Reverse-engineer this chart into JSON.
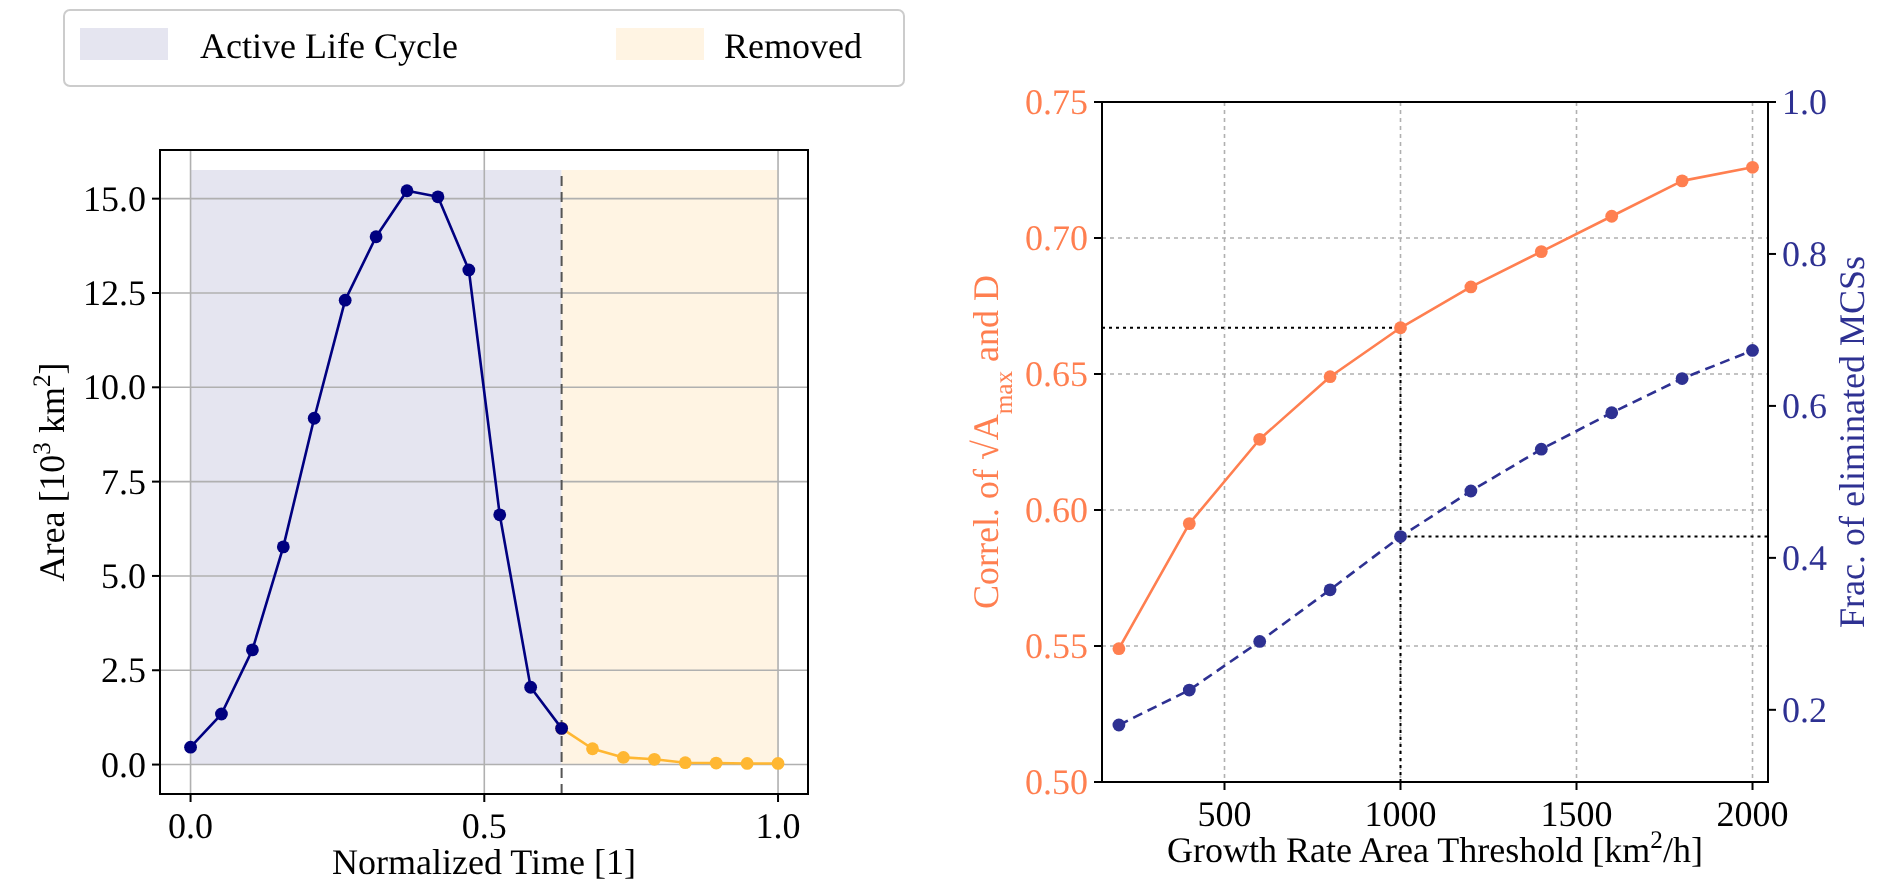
{
  "chart_data": [
    {
      "type": "line",
      "xlabel": "Normalized Time [1]",
      "ylabel": "Area [10$^{3}$ km$^{2}$]",
      "xlim": [
        -0.052,
        1.051
      ],
      "ylim": [
        -0.78,
        16.29
      ],
      "xticks": [
        {
          "value": 0,
          "label": "0.0"
        },
        {
          "value": 0.5,
          "label": "0.5"
        },
        {
          "value": 1,
          "label": "1.0"
        }
      ],
      "yticks": [
        {
          "value": 0,
          "label": "0.0"
        },
        {
          "value": 2.5,
          "label": "2.5"
        },
        {
          "value": 5,
          "label": "5.0"
        },
        {
          "value": 7.5,
          "label": "7.5"
        },
        {
          "value": 10,
          "label": "10.0"
        },
        {
          "value": 12.5,
          "label": "12.5"
        },
        {
          "value": 15,
          "label": "15.0"
        }
      ],
      "grid": true,
      "marker": "circle",
      "legend": "top",
      "series": [
        {
          "color": "#000080",
          "x": [
            0,
            0.0526,
            0.1053,
            0.1579,
            0.2105,
            0.2632,
            0.3158,
            0.3684,
            0.4211,
            0.4737,
            0.5263,
            0.5789,
            0.6316
          ],
          "values": [
            0.46,
            1.34,
            3.04,
            5.77,
            9.18,
            12.31,
            13.99,
            15.21,
            15.05,
            13.11,
            6.62,
            2.05,
            0.96
          ]
        },
        {
          "color": "#ffb732",
          "x": [
            0.6316,
            0.6842,
            0.7368,
            0.7895,
            0.8421,
            0.8947,
            0.9474,
            1.0
          ],
          "values": [
            0.96,
            0.42,
            0.19,
            0.14,
            0.05,
            0.04,
            0.03,
            0.03
          ]
        }
      ],
      "bands": [
        {
          "axis": "x",
          "from": 0,
          "to": 0.6316,
          "label": "Active Life Cycle",
          "color": "#e5e5f0"
        },
        {
          "axis": "x",
          "from": 0.6316,
          "to": 1.0,
          "label": "Removed",
          "color": "#fff4e3"
        }
      ],
      "ref_lines": [
        {
          "axis": "x",
          "value": 0.6316,
          "color": "#555555",
          "line_style": "dashed"
        }
      ]
    },
    {
      "type": "line",
      "xlabel": "Growth Rate Area Threshold [km$^{2}$/h]",
      "ylabel": "Correl. of √A$_{max}$ and D",
      "y2label": "Frac. of eliminated MCSs",
      "xlim": [
        152,
        2044
      ],
      "ylim": [
        0.5,
        0.75
      ],
      "y2lim": [
        0.105,
        1.0
      ],
      "xticks": [
        500,
        1000,
        1500,
        2000
      ],
      "yticks": [
        {
          "value": 0.5,
          "label": "0.50"
        },
        {
          "value": 0.55,
          "label": "0.55"
        },
        {
          "value": 0.6,
          "label": "0.60"
        },
        {
          "value": 0.65,
          "label": "0.65"
        },
        {
          "value": 0.7,
          "label": "0.70"
        },
        {
          "value": 0.75,
          "label": "0.75"
        }
      ],
      "y2ticks": [
        0.2,
        0.4,
        0.6,
        0.8,
        {
          "value": 1,
          "label": "1.0"
        }
      ],
      "grid": true,
      "marker": "circle",
      "series": [
        {
          "color": "#ff7f50",
          "x": [
            200,
            400,
            600,
            800,
            1000,
            1200,
            1400,
            1600,
            1800,
            2000
          ],
          "values": [
            0.549,
            0.595,
            0.626,
            0.649,
            0.667,
            0.682,
            0.695,
            0.708,
            0.721,
            0.726
          ],
          "line_style": "solid"
        },
        {
          "color": "#2e3192",
          "axis": "y2",
          "x": [
            200,
            400,
            600,
            800,
            1000,
            1200,
            1400,
            1600,
            1800,
            2000
          ],
          "values": [
            0.18,
            0.226,
            0.29,
            0.358,
            0.428,
            0.488,
            0.543,
            0.591,
            0.636,
            0.673
          ],
          "line_style": "dashed"
        }
      ],
      "ref_lines": [
        {
          "axis": "y",
          "value": 0.667,
          "color": "#000000",
          "line_style": "dotted"
        },
        {
          "axis": "x",
          "value": 1000,
          "color": "#000000",
          "line_style": "dotted"
        },
        {
          "axis": "y2",
          "value": 0.428,
          "color": "#000000",
          "line_style": "dotted"
        }
      ]
    }
  ]
}
